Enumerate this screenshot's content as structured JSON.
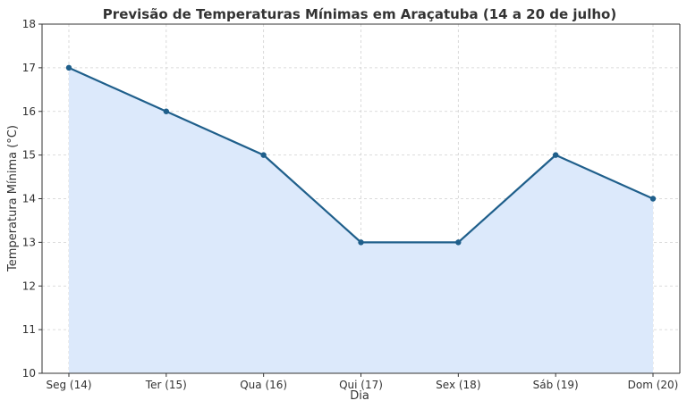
{
  "chart_data": {
    "type": "area",
    "title": "Previsão de Temperaturas Mínimas em Araçatuba (14 a 20 de julho)",
    "xlabel": "Dia",
    "ylabel": "Temperatura Mínima (°C)",
    "categories": [
      "Seg (14)",
      "Ter (15)",
      "Qua (16)",
      "Qui (17)",
      "Sex (18)",
      "Sáb (19)",
      "Dom (20)"
    ],
    "values": [
      17,
      16,
      15,
      13,
      13,
      15,
      14
    ],
    "ylim": [
      10,
      18
    ],
    "yticks": [
      10,
      11,
      12,
      13,
      14,
      15,
      16,
      17,
      18
    ],
    "grid": true,
    "colors": {
      "line": "#1f5f8b",
      "fill": "#dce9fb",
      "marker": "#1f5f8b"
    }
  }
}
